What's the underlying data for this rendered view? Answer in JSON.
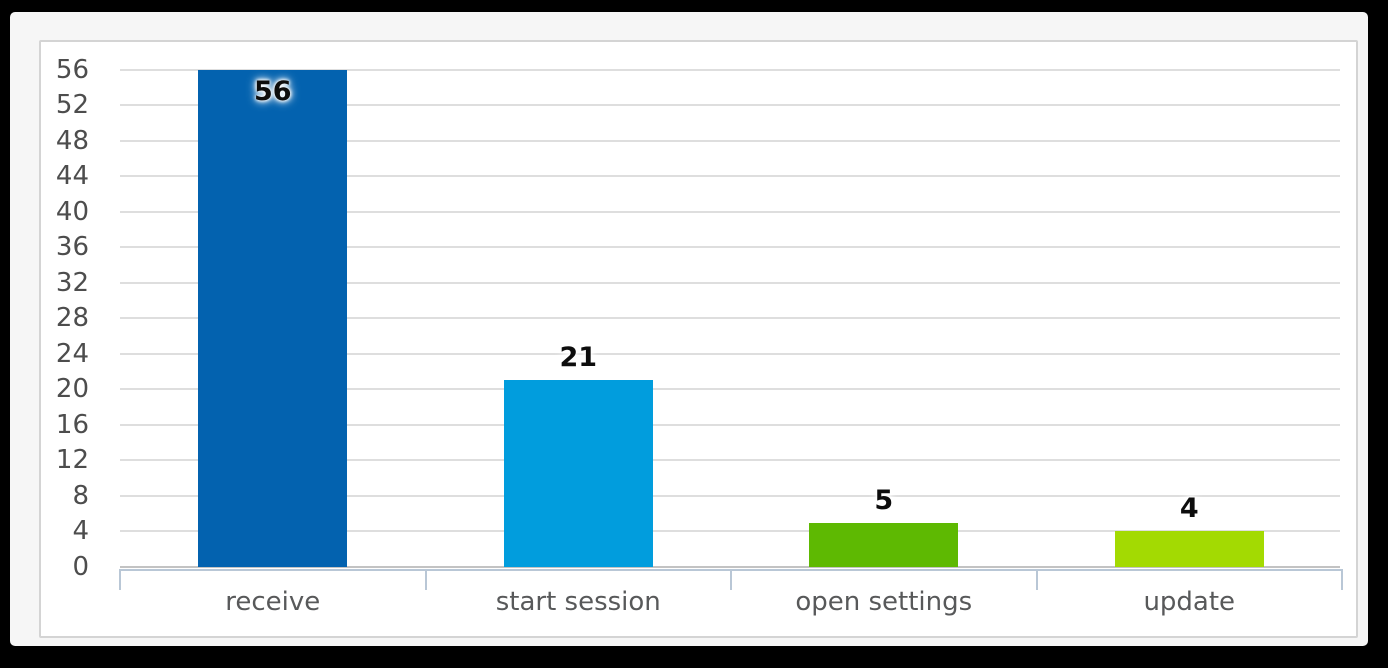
{
  "window": {
    "frame_background": "#000000",
    "card_background": "#f6f6f6",
    "panel_background": "#ffffff",
    "panel_border": "#d4d4d4"
  },
  "chart_data": {
    "type": "bar",
    "title": "",
    "xlabel": "",
    "ylabel": "",
    "categories": [
      "receive",
      "start session",
      "open settings",
      "update"
    ],
    "values": [
      56,
      21,
      5,
      4
    ],
    "value_labels": [
      "56",
      "21",
      "5",
      "4"
    ],
    "bar_colors": [
      "#0362af",
      "#019ddd",
      "#5eb902",
      "#a3da02"
    ],
    "y_ticks": [
      0,
      4,
      8,
      12,
      16,
      20,
      24,
      28,
      32,
      36,
      40,
      44,
      48,
      52,
      56
    ],
    "ylim": [
      0,
      56
    ],
    "grid": true,
    "legend": "none",
    "colors": {
      "grid_line": "#dedede",
      "zero_line": "#c3c3c3",
      "axis_band": "#b9c7d6",
      "tick_label": "#4d4d4d",
      "category_label": "#58595a",
      "value_label": "#0d0d0d"
    }
  }
}
